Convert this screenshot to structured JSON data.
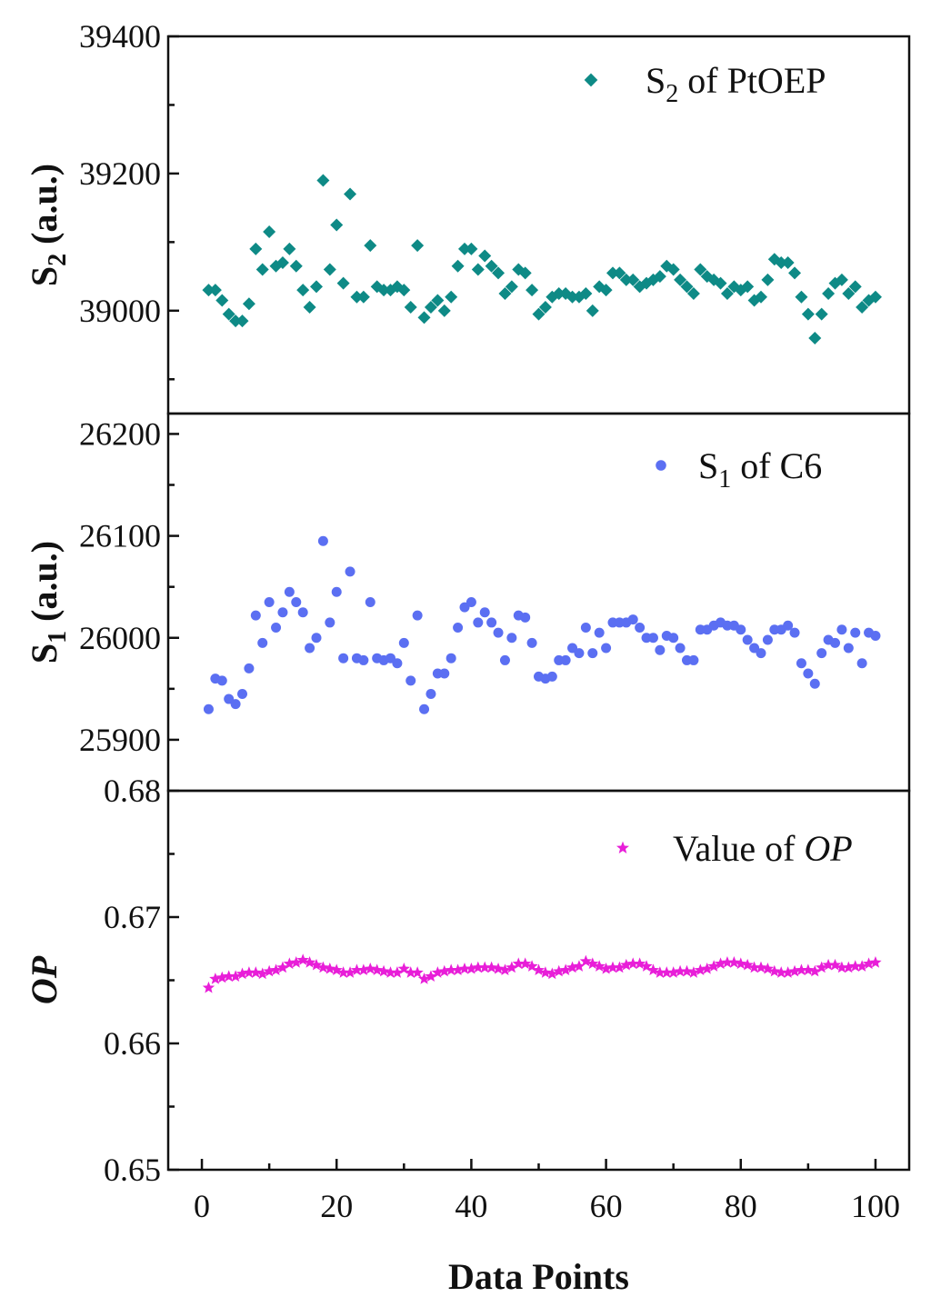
{
  "chart_data": [
    {
      "type": "scatter",
      "name": "S2 panel",
      "ylabel": {
        "main": "S",
        "sub": "2",
        "rest": " (a.u.)"
      },
      "ylim": [
        38850,
        39400
      ],
      "yticks": [
        39000,
        39200,
        39400
      ],
      "ytick_labels": [
        "39000",
        "39200",
        "39400"
      ],
      "legend": {
        "main": "S",
        "sub": "2",
        "rest": " of PtOEP",
        "placement": "top-right"
      },
      "marker": "diamond",
      "color": "#0e8a86",
      "series": [
        {
          "name": "S2 of PtOEP",
          "x": [
            1,
            2,
            3,
            4,
            5,
            6,
            7,
            8,
            9,
            10,
            11,
            12,
            13,
            14,
            15,
            16,
            17,
            18,
            19,
            20,
            21,
            22,
            23,
            24,
            25,
            26,
            27,
            28,
            29,
            30,
            31,
            32,
            33,
            34,
            35,
            36,
            37,
            38,
            39,
            40,
            41,
            42,
            43,
            44,
            45,
            46,
            47,
            48,
            49,
            50,
            51,
            52,
            53,
            54,
            55,
            56,
            57,
            58,
            59,
            60,
            61,
            62,
            63,
            64,
            65,
            66,
            67,
            68,
            69,
            70,
            71,
            72,
            73,
            74,
            75,
            76,
            77,
            78,
            79,
            80,
            81,
            82,
            83,
            84,
            85,
            86,
            87,
            88,
            89,
            90,
            91,
            92,
            93,
            94,
            95,
            96,
            97,
            98,
            99,
            100
          ],
          "values": [
            39030,
            39030,
            39015,
            38995,
            38985,
            38985,
            39010,
            39090,
            39060,
            39115,
            39065,
            39070,
            39090,
            39065,
            39030,
            39005,
            39035,
            39190,
            39060,
            39125,
            39040,
            39170,
            39020,
            39020,
            39095,
            39035,
            39030,
            39030,
            39035,
            39030,
            39005,
            39095,
            38990,
            39005,
            39015,
            39000,
            39020,
            39065,
            39090,
            39090,
            39060,
            39080,
            39065,
            39055,
            39025,
            39035,
            39060,
            39055,
            39030,
            38995,
            39005,
            39020,
            39025,
            39025,
            39020,
            39020,
            39025,
            39000,
            39035,
            39030,
            39055,
            39055,
            39045,
            39045,
            39035,
            39040,
            39045,
            39050,
            39065,
            39060,
            39045,
            39035,
            39025,
            39060,
            39050,
            39045,
            39040,
            39025,
            39035,
            39030,
            39035,
            39015,
            39020,
            39045,
            39075,
            39070,
            39070,
            39055,
            39020,
            38995,
            38960,
            38995,
            39025,
            39040,
            39045,
            39025,
            39035,
            39005,
            39015,
            39020
          ]
        }
      ]
    },
    {
      "type": "scatter",
      "name": "S1 panel",
      "ylabel": {
        "main": "S",
        "sub": "1",
        "rest": " (a.u.)"
      },
      "ylim": [
        25850,
        26220
      ],
      "yticks": [
        25900,
        26000,
        26100,
        26200
      ],
      "ytick_labels": [
        "25900",
        "26000",
        "26100",
        "26200"
      ],
      "legend": {
        "main": "S",
        "sub": "1",
        "rest": " of C6",
        "placement": "top-right"
      },
      "marker": "circle",
      "color": "#5b6ff2",
      "series": [
        {
          "name": "S1 of C6",
          "x": [
            1,
            2,
            3,
            4,
            5,
            6,
            7,
            8,
            9,
            10,
            11,
            12,
            13,
            14,
            15,
            16,
            17,
            18,
            19,
            20,
            21,
            22,
            23,
            24,
            25,
            26,
            27,
            28,
            29,
            30,
            31,
            32,
            33,
            34,
            35,
            36,
            37,
            38,
            39,
            40,
            41,
            42,
            43,
            44,
            45,
            46,
            47,
            48,
            49,
            50,
            51,
            52,
            53,
            54,
            55,
            56,
            57,
            58,
            59,
            60,
            61,
            62,
            63,
            64,
            65,
            66,
            67,
            68,
            69,
            70,
            71,
            72,
            73,
            74,
            75,
            76,
            77,
            78,
            79,
            80,
            81,
            82,
            83,
            84,
            85,
            86,
            87,
            88,
            89,
            90,
            91,
            92,
            93,
            94,
            95,
            96,
            97,
            98,
            99,
            100
          ],
          "values": [
            25930,
            25960,
            25958,
            25940,
            25935,
            25945,
            25970,
            26022,
            25995,
            26035,
            26010,
            26025,
            26045,
            26035,
            26025,
            25990,
            26000,
            26095,
            26015,
            26045,
            25980,
            26065,
            25980,
            25978,
            26035,
            25980,
            25978,
            25980,
            25975,
            25995,
            25958,
            26022,
            25930,
            25945,
            25965,
            25965,
            25980,
            26010,
            26030,
            26035,
            26015,
            26025,
            26015,
            26005,
            25978,
            26000,
            26022,
            26020,
            25995,
            25962,
            25960,
            25962,
            25978,
            25978,
            25990,
            25985,
            26010,
            25985,
            26005,
            25990,
            26015,
            26015,
            26015,
            26018,
            26010,
            26000,
            26000,
            25988,
            26002,
            26000,
            25990,
            25978,
            25978,
            26008,
            26008,
            26012,
            26015,
            26012,
            26012,
            26008,
            25998,
            25990,
            25985,
            25998,
            26008,
            26008,
            26012,
            26005,
            25975,
            25965,
            25955,
            25985,
            25998,
            25995,
            26008,
            25990,
            26005,
            25975,
            26005,
            26002
          ]
        }
      ]
    },
    {
      "type": "scatter",
      "name": "OP panel",
      "ylabel": {
        "main": "OP",
        "sub": "",
        "rest": ""
      },
      "xlabel": "Data Points",
      "ylim": [
        0.65,
        0.68
      ],
      "yticks": [
        0.65,
        0.66,
        0.67,
        0.68
      ],
      "ytick_labels": [
        "0.65",
        "0.66",
        "0.67",
        "0.68"
      ],
      "xlim": [
        -5,
        105
      ],
      "xticks": [
        0,
        20,
        40,
        60,
        80,
        100
      ],
      "xtick_labels": [
        "0",
        "20",
        "40",
        "60",
        "80",
        "100"
      ],
      "legend": {
        "main": "Value of ",
        "sub": "",
        "rest": "OP",
        "placement": "top-right"
      },
      "marker": "star",
      "color": "#e81ed8",
      "series": [
        {
          "name": "Value of OP",
          "x": [
            1,
            2,
            3,
            4,
            5,
            6,
            7,
            8,
            9,
            10,
            11,
            12,
            13,
            14,
            15,
            16,
            17,
            18,
            19,
            20,
            21,
            22,
            23,
            24,
            25,
            26,
            27,
            28,
            29,
            30,
            31,
            32,
            33,
            34,
            35,
            36,
            37,
            38,
            39,
            40,
            41,
            42,
            43,
            44,
            45,
            46,
            47,
            48,
            49,
            50,
            51,
            52,
            53,
            54,
            55,
            56,
            57,
            58,
            59,
            60,
            61,
            62,
            63,
            64,
            65,
            66,
            67,
            68,
            69,
            70,
            71,
            72,
            73,
            74,
            75,
            76,
            77,
            78,
            79,
            80,
            81,
            82,
            83,
            84,
            85,
            86,
            87,
            88,
            89,
            90,
            91,
            92,
            93,
            94,
            95,
            96,
            97,
            98,
            99,
            100
          ],
          "values": [
            0.6644,
            0.6651,
            0.6652,
            0.6653,
            0.6653,
            0.6655,
            0.6656,
            0.6656,
            0.6655,
            0.6657,
            0.6658,
            0.666,
            0.6663,
            0.6664,
            0.6666,
            0.6664,
            0.6662,
            0.666,
            0.6659,
            0.6658,
            0.6656,
            0.6656,
            0.6658,
            0.6658,
            0.6659,
            0.6658,
            0.6657,
            0.6656,
            0.6656,
            0.6659,
            0.6656,
            0.6656,
            0.6651,
            0.6653,
            0.6656,
            0.6657,
            0.6658,
            0.6658,
            0.6659,
            0.6659,
            0.666,
            0.666,
            0.666,
            0.6659,
            0.6658,
            0.666,
            0.6663,
            0.6663,
            0.6661,
            0.6658,
            0.6656,
            0.6655,
            0.6657,
            0.6658,
            0.666,
            0.6661,
            0.6665,
            0.6663,
            0.6661,
            0.6659,
            0.666,
            0.666,
            0.6662,
            0.6663,
            0.6663,
            0.6661,
            0.6658,
            0.6656,
            0.6656,
            0.6656,
            0.6657,
            0.6657,
            0.6656,
            0.6658,
            0.6659,
            0.6661,
            0.6663,
            0.6664,
            0.6664,
            0.6663,
            0.6662,
            0.666,
            0.666,
            0.6659,
            0.6657,
            0.6656,
            0.6656,
            0.6657,
            0.6658,
            0.6658,
            0.6657,
            0.666,
            0.6662,
            0.6662,
            0.666,
            0.666,
            0.6661,
            0.6661,
            0.6663,
            0.6664
          ]
        }
      ]
    }
  ]
}
